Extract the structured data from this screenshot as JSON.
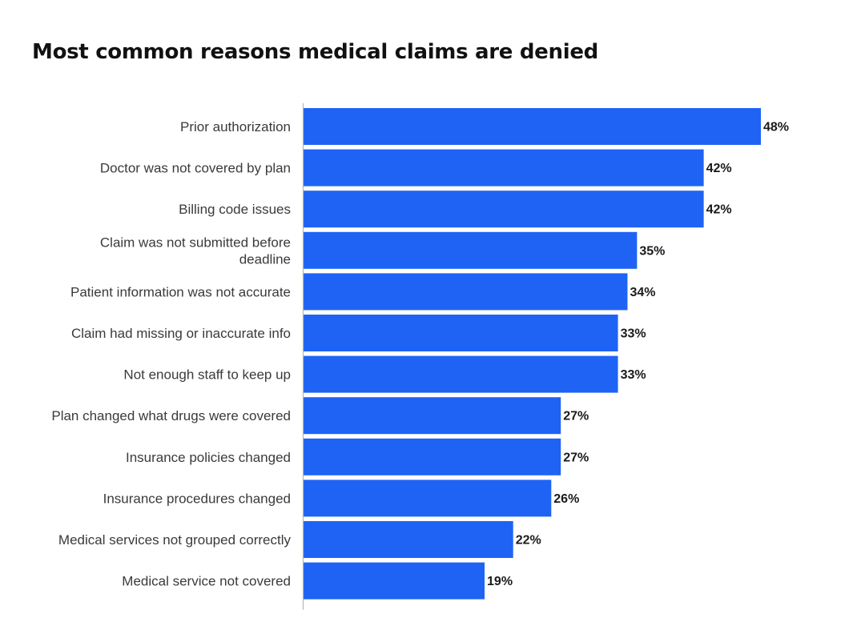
{
  "title": "Most common reasons medical claims are denied",
  "colors": {
    "bar": "#1f63f5",
    "axis": "#b5b5b5",
    "label": "#3a3a3a",
    "value": "#1a1a1a",
    "title": "#111111"
  },
  "chart_data": {
    "type": "bar",
    "orientation": "horizontal",
    "title": "Most common reasons medical claims are denied",
    "xlabel": "",
    "ylabel": "",
    "xlim": [
      0,
      48
    ],
    "grid": false,
    "legend": "none",
    "value_suffix": "%",
    "categories": [
      "Prior authorization",
      "Doctor was not covered by plan",
      "Billing code issues",
      "Claim was not submitted before deadline",
      "Patient information was not accurate",
      "Claim had missing or inaccurate info",
      "Not enough staff to keep up",
      "Plan changed what drugs were covered",
      "Insurance policies changed",
      "Insurance procedures changed",
      "Medical services not grouped correctly",
      "Medical service not covered"
    ],
    "category_label_lines": [
      [
        "Prior authorization"
      ],
      [
        "Doctor was not covered by plan"
      ],
      [
        "Billing code issues"
      ],
      [
        "Claim was not submitted before",
        "deadline"
      ],
      [
        "Patient information was not accurate"
      ],
      [
        "Claim had missing or inaccurate info"
      ],
      [
        "Not enough staff to keep up"
      ],
      [
        "Plan changed what drugs were covered"
      ],
      [
        "Insurance policies changed"
      ],
      [
        "Insurance procedures changed"
      ],
      [
        "Medical services not grouped correctly"
      ],
      [
        "Medical service not covered"
      ]
    ],
    "values": [
      48,
      42,
      42,
      35,
      34,
      33,
      33,
      27,
      27,
      26,
      22,
      19
    ],
    "data_labels": [
      "48%",
      "42%",
      "42%",
      "35%",
      "34%",
      "33%",
      "33%",
      "27%",
      "27%",
      "26%",
      "22%",
      "19%"
    ]
  }
}
